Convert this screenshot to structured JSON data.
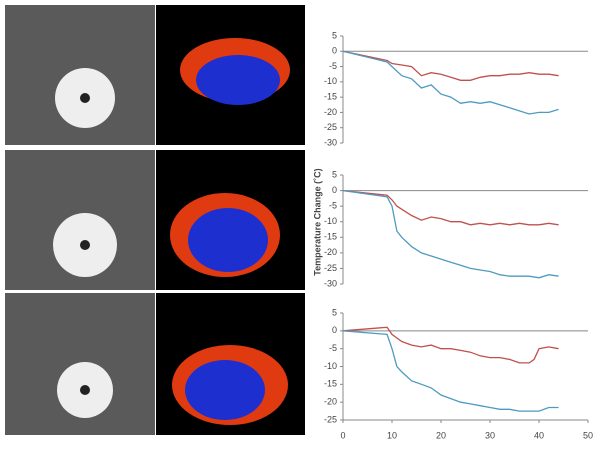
{
  "chart_data": [
    {
      "type": "line",
      "xlim": [
        0,
        50
      ],
      "ylim": [
        -30,
        5
      ],
      "yticks": [
        5,
        0,
        -5,
        -10,
        -15,
        -20,
        -25,
        -30
      ],
      "x": [
        0,
        9,
        10,
        12,
        14,
        16,
        18,
        20,
        22,
        24,
        26,
        28,
        30,
        32,
        34,
        36,
        38,
        40,
        42,
        44
      ],
      "series": [
        {
          "color": "#c0504d",
          "values": [
            0,
            -3,
            -4,
            -4.5,
            -5,
            -8,
            -7,
            -7.5,
            -8.5,
            -9.5,
            -9.5,
            -8.5,
            -8,
            -8,
            -7.5,
            -7.5,
            -7,
            -7.5,
            -7.5,
            -8
          ]
        },
        {
          "color": "#4f9ac0",
          "values": [
            0,
            -3.5,
            -5,
            -8,
            -9,
            -12,
            -11,
            -14,
            -15,
            -17,
            -16.5,
            -17,
            -16.5,
            -17.5,
            -18.5,
            -19.5,
            -20.5,
            -20,
            -20,
            -19
          ]
        }
      ]
    },
    {
      "type": "line",
      "y_label": "Temperature Change (˚C)",
      "xlim": [
        0,
        50
      ],
      "ylim": [
        -30,
        5
      ],
      "yticks": [
        5,
        0,
        -5,
        -10,
        -15,
        -20,
        -25,
        -30
      ],
      "x": [
        0,
        9,
        10,
        11,
        12,
        14,
        16,
        18,
        20,
        22,
        24,
        26,
        28,
        30,
        32,
        34,
        36,
        38,
        40,
        42,
        44
      ],
      "series": [
        {
          "color": "#c0504d",
          "values": [
            0,
            -1.5,
            -3,
            -5,
            -6,
            -8,
            -9.5,
            -8.5,
            -9,
            -10,
            -10,
            -11,
            -10.5,
            -11,
            -10.5,
            -11,
            -10.5,
            -11,
            -11,
            -10.5,
            -11
          ]
        },
        {
          "color": "#4f9ac0",
          "values": [
            0,
            -2,
            -5,
            -13,
            -15,
            -18,
            -20,
            -21,
            -22,
            -23,
            -24,
            -25,
            -25.5,
            -26,
            -27,
            -27.5,
            -27.5,
            -27.5,
            -28,
            -27,
            -27.5
          ]
        }
      ]
    },
    {
      "type": "line",
      "xlim": [
        0,
        50
      ],
      "ylim": [
        -25,
        5
      ],
      "yticks": [
        5,
        0,
        -5,
        -10,
        -15,
        -20,
        -25
      ],
      "xticks": [
        0,
        10,
        20,
        30,
        40,
        50
      ],
      "x": [
        0,
        9,
        10,
        11,
        12,
        14,
        16,
        18,
        20,
        22,
        24,
        26,
        28,
        30,
        32,
        34,
        36,
        38,
        39,
        40,
        42,
        44
      ],
      "series": [
        {
          "color": "#c0504d",
          "values": [
            0,
            1,
            -1,
            -2,
            -3,
            -4,
            -4.5,
            -4,
            -5,
            -5,
            -5.5,
            -6,
            -7,
            -7.5,
            -7.5,
            -8,
            -9,
            -9,
            -8,
            -5,
            -4.5,
            -5
          ]
        },
        {
          "color": "#4f9ac0",
          "values": [
            0,
            -1,
            -5,
            -10,
            -11.5,
            -14,
            -15,
            -16,
            -18,
            -19,
            -20,
            -20.5,
            -21,
            -21.5,
            -22,
            -22,
            -22.5,
            -22.5,
            -22.5,
            -22.5,
            -21.5,
            -21.5
          ]
        }
      ]
    }
  ]
}
